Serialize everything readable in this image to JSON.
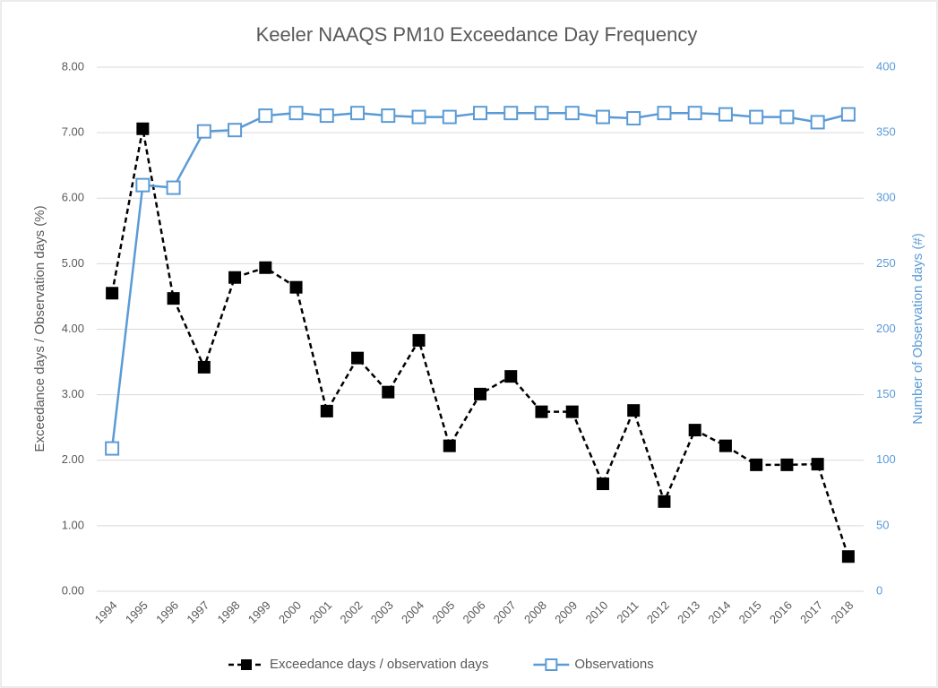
{
  "chart_data": {
    "type": "line",
    "title": "Keeler NAAQS PM10 Exceedance Day Frequency",
    "ylabel": "Exceedance days / Observation days (%)",
    "y2label": "Number of Observation days (#)",
    "categories": [
      "1994",
      "1995",
      "1996",
      "1997",
      "1998",
      "1999",
      "2000",
      "2001",
      "2002",
      "2003",
      "2004",
      "2005",
      "2006",
      "2007",
      "2008",
      "2009",
      "2010",
      "2011",
      "2012",
      "2013",
      "2014",
      "2015",
      "2016",
      "2017",
      "2018"
    ],
    "series": [
      {
        "name": "Exceedance days / observation days",
        "color": "#000000",
        "dashed": true,
        "hollow": false,
        "values": [
          4.55,
          7.06,
          4.47,
          3.42,
          4.79,
          4.94,
          4.64,
          2.75,
          3.56,
          3.04,
          3.83,
          2.22,
          3.01,
          3.28,
          2.74,
          2.74,
          1.64,
          2.76,
          1.37,
          2.46,
          2.22,
          1.93,
          1.93,
          1.94,
          0.53
        ]
      },
      {
        "name": "Observations",
        "color": "#5b9bd5",
        "dashed": false,
        "hollow": true,
        "axis": "y2",
        "values": [
          109,
          310,
          308,
          351,
          352,
          363,
          365,
          363,
          365,
          363,
          362,
          362,
          365,
          365,
          365,
          365,
          362,
          361,
          365,
          365,
          364,
          362,
          362,
          358,
          364
        ]
      }
    ],
    "ylim": [
      0,
      8
    ],
    "yticks": [
      {
        "value": 0,
        "label": "0.00"
      },
      {
        "value": 1,
        "label": "1.00"
      },
      {
        "value": 2,
        "label": "2.00"
      },
      {
        "value": 3,
        "label": "3.00"
      },
      {
        "value": 4,
        "label": "4.00"
      },
      {
        "value": 5,
        "label": "5.00"
      },
      {
        "value": 6,
        "label": "6.00"
      },
      {
        "value": 7,
        "label": "7.00"
      },
      {
        "value": 8,
        "label": "8.00"
      }
    ],
    "y2lim": [
      0,
      400
    ],
    "y2ticks": [
      0,
      50,
      100,
      150,
      200,
      250,
      300,
      350,
      400
    ],
    "y2color": "#5b9bd5",
    "grid": true,
    "legend": "bottom"
  }
}
